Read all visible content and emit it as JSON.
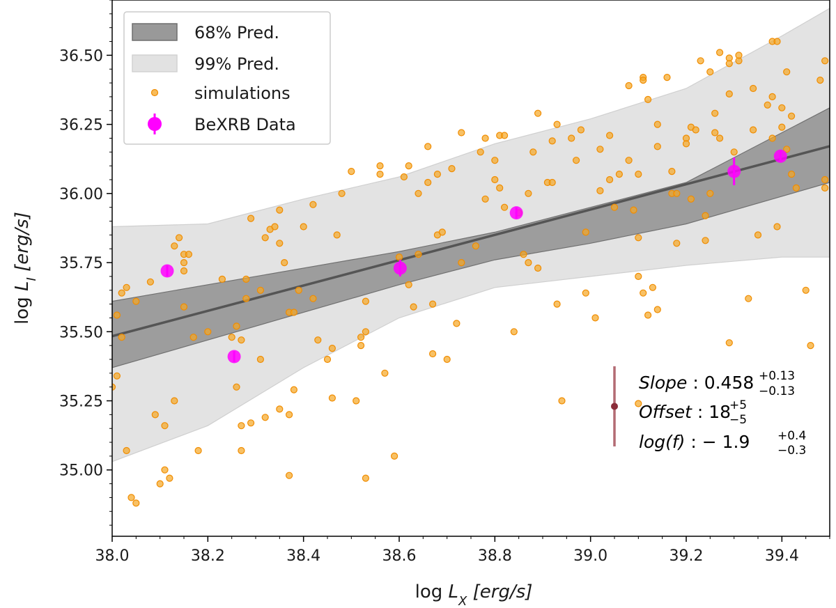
{
  "chart_data": {
    "type": "scatter",
    "xlabel": {
      "prefix": "log",
      "var": "L",
      "sub": "X",
      "unit": "[erg/s]"
    },
    "ylabel": {
      "prefix": "log",
      "var": "L",
      "sub": "I",
      "unit": "[erg/s]"
    },
    "xlim": [
      38.0,
      39.5
    ],
    "ylim": [
      34.76,
      36.7
    ],
    "x_ticks": [
      "38.0",
      "38.2",
      "38.4",
      "38.6",
      "38.8",
      "39.0",
      "39.2",
      "39.4"
    ],
    "y_ticks": [
      "35.00",
      "35.25",
      "35.50",
      "35.75",
      "36.00",
      "36.25",
      "36.50"
    ],
    "fit": {
      "slope": 0.458,
      "offset": 18.08
    },
    "colors": {
      "simulations": "#f5a623",
      "data": "#ff00ff",
      "fit_line": "#555555",
      "band68": "#999999",
      "band99": "#e2e2e2",
      "err_marker": "#8b2d3a"
    },
    "legend": [
      {
        "label": "68% Pred.",
        "kind": "band68"
      },
      {
        "label": "99% Pred.",
        "kind": "band99"
      },
      {
        "label": "simulations",
        "kind": "sim"
      },
      {
        "label": "BeXRB Data",
        "kind": "data"
      }
    ],
    "bands": {
      "b68": {
        "x": [
          38.0,
          38.6,
          38.8,
          39.0,
          39.2,
          39.5
        ],
        "upper": [
          35.61,
          35.79,
          35.86,
          35.95,
          36.04,
          36.31
        ],
        "lower": [
          35.37,
          35.67,
          35.76,
          35.82,
          35.89,
          36.04
        ]
      },
      "b99": {
        "x": [
          38.0,
          38.2,
          38.4,
          38.6,
          38.8,
          39.0,
          39.2,
          39.4,
          39.5
        ],
        "upper": [
          35.88,
          35.89,
          35.98,
          36.06,
          36.18,
          36.27,
          36.38,
          36.57,
          36.67
        ],
        "lower": [
          35.03,
          35.16,
          35.37,
          35.55,
          35.66,
          35.7,
          35.74,
          35.77,
          35.77
        ]
      }
    },
    "simulations": [
      [
        38.0,
        35.3
      ],
      [
        38.01,
        35.34
      ],
      [
        38.01,
        35.56
      ],
      [
        38.02,
        35.48
      ],
      [
        38.02,
        35.64
      ],
      [
        38.03,
        35.66
      ],
      [
        38.03,
        35.07
      ],
      [
        38.04,
        34.9
      ],
      [
        38.05,
        34.88
      ],
      [
        38.05,
        35.61
      ],
      [
        38.08,
        35.68
      ],
      [
        38.09,
        35.2
      ],
      [
        38.1,
        34.95
      ],
      [
        38.11,
        35.0
      ],
      [
        38.11,
        35.16
      ],
      [
        38.12,
        34.97
      ],
      [
        38.13,
        35.25
      ],
      [
        38.13,
        35.81
      ],
      [
        38.14,
        35.84
      ],
      [
        38.15,
        35.78
      ],
      [
        38.15,
        35.59
      ],
      [
        38.15,
        35.72
      ],
      [
        38.15,
        35.75
      ],
      [
        38.16,
        35.78
      ],
      [
        38.17,
        35.48
      ],
      [
        38.18,
        35.07
      ],
      [
        38.2,
        35.5
      ],
      [
        38.23,
        35.69
      ],
      [
        38.25,
        35.48
      ],
      [
        38.26,
        35.3
      ],
      [
        38.26,
        35.52
      ],
      [
        38.27,
        35.47
      ],
      [
        38.27,
        35.16
      ],
      [
        38.27,
        35.07
      ],
      [
        38.28,
        35.69
      ],
      [
        38.28,
        35.62
      ],
      [
        38.29,
        35.17
      ],
      [
        38.29,
        35.91
      ],
      [
        38.31,
        35.65
      ],
      [
        38.31,
        35.4
      ],
      [
        38.32,
        35.19
      ],
      [
        38.32,
        35.84
      ],
      [
        38.33,
        35.87
      ],
      [
        38.34,
        35.88
      ],
      [
        38.35,
        35.22
      ],
      [
        38.35,
        35.94
      ],
      [
        38.35,
        35.82
      ],
      [
        38.36,
        35.75
      ],
      [
        38.37,
        35.57
      ],
      [
        38.37,
        34.98
      ],
      [
        38.37,
        35.2
      ],
      [
        38.38,
        35.57
      ],
      [
        38.38,
        35.29
      ],
      [
        38.39,
        35.65
      ],
      [
        38.4,
        35.88
      ],
      [
        38.42,
        35.96
      ],
      [
        38.42,
        35.62
      ],
      [
        38.43,
        35.47
      ],
      [
        38.45,
        35.4
      ],
      [
        38.46,
        35.26
      ],
      [
        38.46,
        35.44
      ],
      [
        38.47,
        35.85
      ],
      [
        38.48,
        36.0
      ],
      [
        38.5,
        36.08
      ],
      [
        38.51,
        35.25
      ],
      [
        38.52,
        35.48
      ],
      [
        38.52,
        35.45
      ],
      [
        38.53,
        35.5
      ],
      [
        38.53,
        35.61
      ],
      [
        38.53,
        34.97
      ],
      [
        38.56,
        36.07
      ],
      [
        38.56,
        36.1
      ],
      [
        38.57,
        35.35
      ],
      [
        38.59,
        35.05
      ],
      [
        38.6,
        35.77
      ],
      [
        38.61,
        36.06
      ],
      [
        38.62,
        36.1
      ],
      [
        38.62,
        35.67
      ],
      [
        38.63,
        35.59
      ],
      [
        38.64,
        35.78
      ],
      [
        38.64,
        36.0
      ],
      [
        38.66,
        36.04
      ],
      [
        38.66,
        36.17
      ],
      [
        38.67,
        35.42
      ],
      [
        38.67,
        35.6
      ],
      [
        38.68,
        36.07
      ],
      [
        38.68,
        35.85
      ],
      [
        38.69,
        35.86
      ],
      [
        38.7,
        35.4
      ],
      [
        38.71,
        36.09
      ],
      [
        38.72,
        35.53
      ],
      [
        38.73,
        36.22
      ],
      [
        38.73,
        35.75
      ],
      [
        38.76,
        35.81
      ],
      [
        38.77,
        36.15
      ],
      [
        38.78,
        35.98
      ],
      [
        38.78,
        36.2
      ],
      [
        38.8,
        36.05
      ],
      [
        38.8,
        36.12
      ],
      [
        38.81,
        36.21
      ],
      [
        38.81,
        36.02
      ],
      [
        38.82,
        36.21
      ],
      [
        38.82,
        35.95
      ],
      [
        38.84,
        35.5
      ],
      [
        38.85,
        35.93
      ],
      [
        38.86,
        35.78
      ],
      [
        38.87,
        36.0
      ],
      [
        38.87,
        35.75
      ],
      [
        38.88,
        36.15
      ],
      [
        38.89,
        36.29
      ],
      [
        38.89,
        35.73
      ],
      [
        38.91,
        36.04
      ],
      [
        38.92,
        36.04
      ],
      [
        38.92,
        36.19
      ],
      [
        38.93,
        35.6
      ],
      [
        38.93,
        36.25
      ],
      [
        38.94,
        35.25
      ],
      [
        38.96,
        36.2
      ],
      [
        38.97,
        36.12
      ],
      [
        38.98,
        36.23
      ],
      [
        38.99,
        35.86
      ],
      [
        38.99,
        35.64
      ],
      [
        39.01,
        35.55
      ],
      [
        39.02,
        36.16
      ],
      [
        39.02,
        36.01
      ],
      [
        39.04,
        36.05
      ],
      [
        39.04,
        36.21
      ],
      [
        39.05,
        35.95
      ],
      [
        39.06,
        36.07
      ],
      [
        39.08,
        36.12
      ],
      [
        39.08,
        36.39
      ],
      [
        39.09,
        35.94
      ],
      [
        39.1,
        35.7
      ],
      [
        39.1,
        35.84
      ],
      [
        39.1,
        36.07
      ],
      [
        39.1,
        35.24
      ],
      [
        39.11,
        36.42
      ],
      [
        39.11,
        35.64
      ],
      [
        39.11,
        36.41
      ],
      [
        39.12,
        35.56
      ],
      [
        39.12,
        36.34
      ],
      [
        39.13,
        35.66
      ],
      [
        39.14,
        35.58
      ],
      [
        39.14,
        36.25
      ],
      [
        39.14,
        36.17
      ],
      [
        39.16,
        36.42
      ],
      [
        39.17,
        36.08
      ],
      [
        39.17,
        36.0
      ],
      [
        39.18,
        35.82
      ],
      [
        39.18,
        36.0
      ],
      [
        39.2,
        36.2
      ],
      [
        39.2,
        36.18
      ],
      [
        39.21,
        35.98
      ],
      [
        39.21,
        36.24
      ],
      [
        39.22,
        36.23
      ],
      [
        39.23,
        36.48
      ],
      [
        39.24,
        35.92
      ],
      [
        39.24,
        35.83
      ],
      [
        39.25,
        36.44
      ],
      [
        39.25,
        36.0
      ],
      [
        39.26,
        36.22
      ],
      [
        39.26,
        36.29
      ],
      [
        39.27,
        36.51
      ],
      [
        39.27,
        36.2
      ],
      [
        39.29,
        35.46
      ],
      [
        39.29,
        36.36
      ],
      [
        39.29,
        36.49
      ],
      [
        39.29,
        36.47
      ],
      [
        39.3,
        36.15
      ],
      [
        39.31,
        36.48
      ],
      [
        39.31,
        36.5
      ],
      [
        39.33,
        35.62
      ],
      [
        39.34,
        36.38
      ],
      [
        39.34,
        36.23
      ],
      [
        39.35,
        35.85
      ],
      [
        39.37,
        36.32
      ],
      [
        39.38,
        36.35
      ],
      [
        39.38,
        36.2
      ],
      [
        39.38,
        36.55
      ],
      [
        39.39,
        36.55
      ],
      [
        39.39,
        35.88
      ],
      [
        39.4,
        36.24
      ],
      [
        39.4,
        36.31
      ],
      [
        39.41,
        36.44
      ],
      [
        39.41,
        36.16
      ],
      [
        39.42,
        36.07
      ],
      [
        39.42,
        36.28
      ],
      [
        39.43,
        36.02
      ],
      [
        39.45,
        35.65
      ],
      [
        39.46,
        35.45
      ],
      [
        39.48,
        36.41
      ],
      [
        39.49,
        36.02
      ],
      [
        39.49,
        36.48
      ],
      [
        39.49,
        36.05
      ]
    ],
    "bexrb_data": [
      {
        "x": 38.115,
        "y": 35.72,
        "yerr": 0.02
      },
      {
        "x": 38.255,
        "y": 35.41,
        "yerr": 0.02
      },
      {
        "x": 38.602,
        "y": 35.73,
        "yerr": 0.03
      },
      {
        "x": 38.845,
        "y": 35.93,
        "yerr": 0.02
      },
      {
        "x": 39.3,
        "y": 36.08,
        "yerr": 0.05
      },
      {
        "x": 39.397,
        "y": 36.135,
        "yerr": 0.02
      }
    ],
    "intrinsic_errorbar": {
      "x": 39.05,
      "y": 35.23,
      "ylow": 35.085,
      "yhigh": 35.375
    },
    "annotations": {
      "slope_label": "Slope",
      "slope_value": "0.458",
      "slope_up": "+0.13",
      "slope_down": "−0.13",
      "offset_label": "Offset",
      "offset_value": "18",
      "offset_up": "+5",
      "offset_down": "−5",
      "logf_label": "log(f)",
      "logf_value": "− 1.9",
      "logf_up": "+0.4",
      "logf_down": "−0.3"
    }
  }
}
